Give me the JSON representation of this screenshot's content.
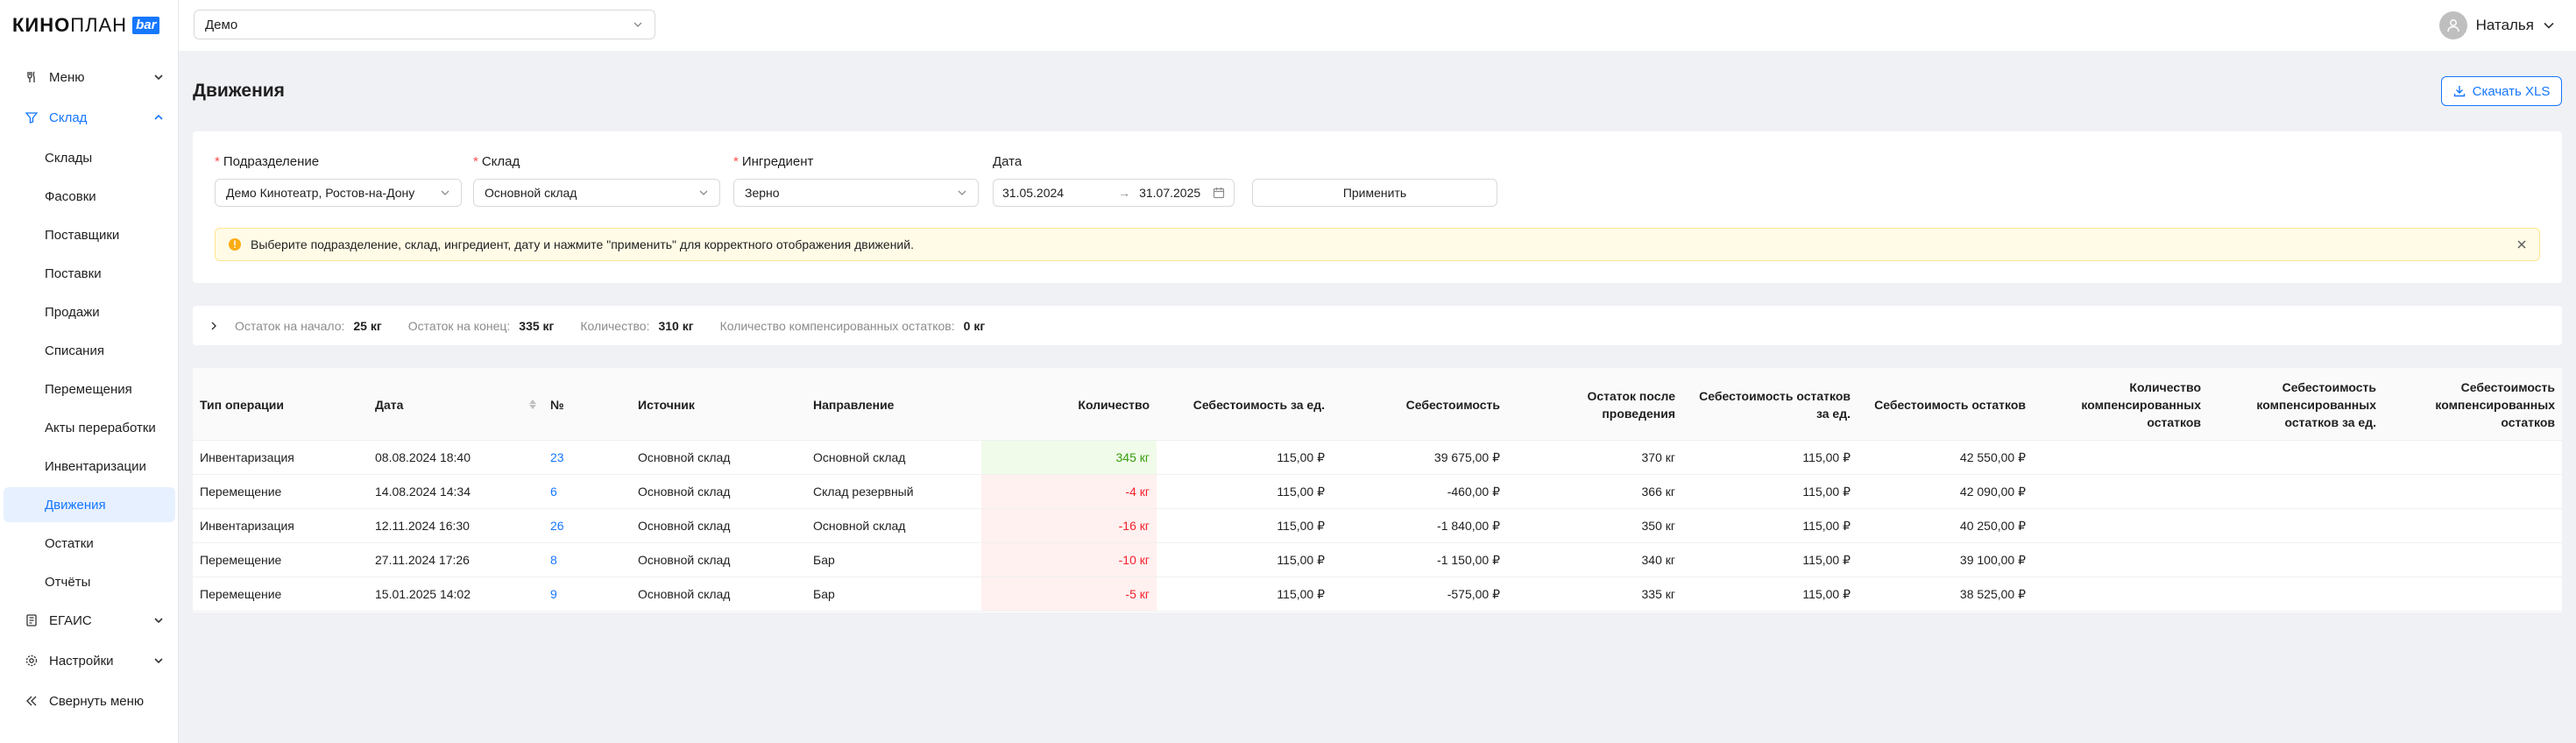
{
  "brand": {
    "name_bold": "КИНО",
    "name_light": "ПЛАН",
    "badge": "bar"
  },
  "sidebar": {
    "menu": {
      "label": "Меню"
    },
    "sklad": {
      "label": "Склад"
    },
    "sklad_items": [
      {
        "label": "Склады"
      },
      {
        "label": "Фасовки"
      },
      {
        "label": "Поставщики"
      },
      {
        "label": "Поставки"
      },
      {
        "label": "Продажи"
      },
      {
        "label": "Списания"
      },
      {
        "label": "Перемещения"
      },
      {
        "label": "Акты переработки"
      },
      {
        "label": "Инвентаризации"
      },
      {
        "label": "Движения"
      },
      {
        "label": "Остатки"
      },
      {
        "label": "Отчёты"
      }
    ],
    "active_item": "Движения",
    "egais": {
      "label": "ЕГАИС"
    },
    "settings": {
      "label": "Настройки"
    },
    "collapse": {
      "label": "Свернуть меню"
    }
  },
  "header": {
    "org_select": "Демо",
    "user_name": "Наталья"
  },
  "page": {
    "title": "Движения",
    "download_button": "Скачать XLS"
  },
  "filters": {
    "division": {
      "label": "Подразделение",
      "value": "Демо Кинотеатр, Ростов-на-Дону"
    },
    "warehouse": {
      "label": "Склад",
      "value": "Основной склад"
    },
    "ingredient": {
      "label": "Ингредиент",
      "value": "Зерно"
    },
    "date": {
      "label": "Дата",
      "from": "31.05.2024",
      "to": "31.07.2025"
    },
    "apply_button": "Применить",
    "alert": "Выберите подразделение, склад, ингредиент, дату и нажмите \"применить\" для корректного отображения движений."
  },
  "summary": {
    "start_label": "Остаток на начало:",
    "start_value": "25 кг",
    "end_label": "Остаток на конец:",
    "end_value": "335 кг",
    "qty_label": "Количество:",
    "qty_value": "310 кг",
    "comp_label": "Количество компенсированных остатков:",
    "comp_value": "0 кг"
  },
  "table": {
    "columns": {
      "op_type": "Тип операции",
      "date": "Дата",
      "num": "№",
      "source": "Источник",
      "direction": "Направление",
      "qty": "Количество",
      "unit_cost": "Себестоимость за ед.",
      "cost": "Себестоимость",
      "balance_after": "Остаток после проведения",
      "balance_unit_cost_l1": "Себестоимость остатков",
      "balance_unit_cost_l2": "за ед.",
      "balance_cost": "Себестоимость остатков",
      "comp_qty_l1": "Количество",
      "comp_qty_l2": "компенсированных",
      "comp_qty_l3": "остатков",
      "comp_unit_cost_l1": "Себестоимость",
      "comp_unit_cost_l2": "компенсированных",
      "comp_unit_cost_l3": "остатков за ед.",
      "comp_cost_l1": "Себестоимость",
      "comp_cost_l2": "компенсированных",
      "comp_cost_l3": "остатков"
    },
    "rows": [
      {
        "op_type": "Инвентаризация",
        "date": "08.08.2024 18:40",
        "num": "23",
        "source": "Основной склад",
        "direction": "Основной склад",
        "qty": "345 кг",
        "qty_sign": "pos",
        "unit_cost": "115,00 ₽",
        "cost": "39 675,00 ₽",
        "balance_after": "370 кг",
        "balance_unit_cost": "115,00 ₽",
        "balance_cost": "42 550,00 ₽"
      },
      {
        "op_type": "Перемещение",
        "date": "14.08.2024 14:34",
        "num": "6",
        "source": "Основной склад",
        "direction": "Склад резервный",
        "qty": "-4 кг",
        "qty_sign": "neg",
        "unit_cost": "115,00 ₽",
        "cost": "-460,00 ₽",
        "balance_after": "366 кг",
        "balance_unit_cost": "115,00 ₽",
        "balance_cost": "42 090,00 ₽"
      },
      {
        "op_type": "Инвентаризация",
        "date": "12.11.2024 16:30",
        "num": "26",
        "source": "Основной склад",
        "direction": "Основной склад",
        "qty": "-16 кг",
        "qty_sign": "neg",
        "unit_cost": "115,00 ₽",
        "cost": "-1 840,00 ₽",
        "balance_after": "350 кг",
        "balance_unit_cost": "115,00 ₽",
        "balance_cost": "40 250,00 ₽"
      },
      {
        "op_type": "Перемещение",
        "date": "27.11.2024 17:26",
        "num": "8",
        "source": "Основной склад",
        "direction": "Бар",
        "qty": "-10 кг",
        "qty_sign": "neg",
        "unit_cost": "115,00 ₽",
        "cost": "-1 150,00 ₽",
        "balance_after": "340 кг",
        "balance_unit_cost": "115,00 ₽",
        "balance_cost": "39 100,00 ₽"
      },
      {
        "op_type": "Перемещение",
        "date": "15.01.2025 14:02",
        "num": "9",
        "source": "Основной склад",
        "direction": "Бар",
        "qty": "-5 кг",
        "qty_sign": "neg",
        "unit_cost": "115,00 ₽",
        "cost": "-575,00 ₽",
        "balance_after": "335 кг",
        "balance_unit_cost": "115,00 ₽",
        "balance_cost": "38 525,00 ₽"
      }
    ]
  },
  "colors": {
    "accent": "#1677ff",
    "positive_bg": "#f0fbea",
    "negative_bg": "#fff1f0",
    "alert_bg": "#fffbe6"
  }
}
